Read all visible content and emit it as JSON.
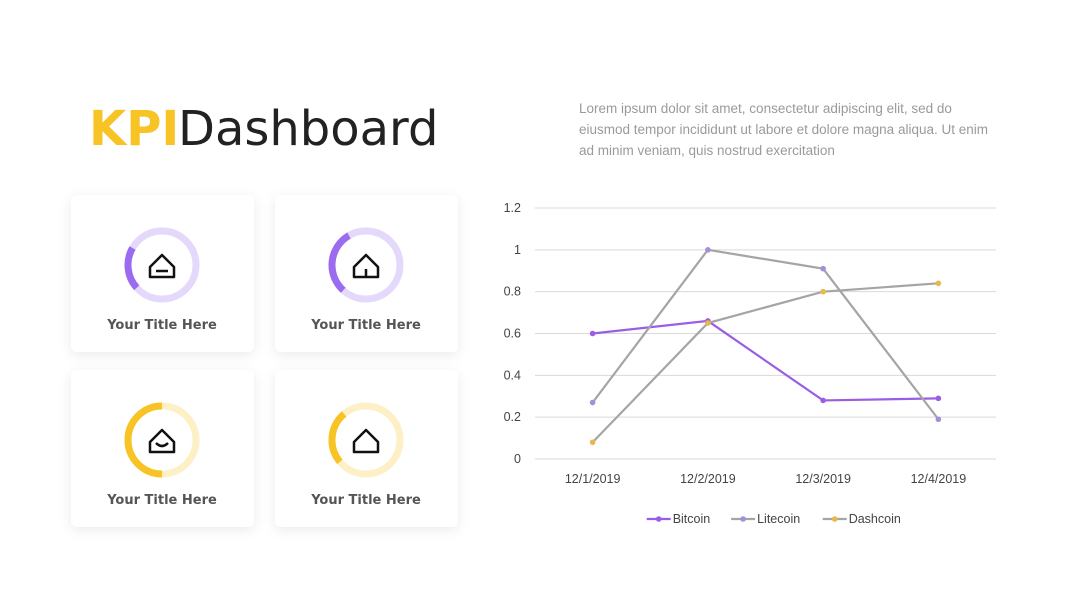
{
  "header": {
    "title_accent": "KPI",
    "title": "Dashboard",
    "description": "Lorem ipsum dolor sit amet, consectetur adipiscing elit, sed do eiusmod tempor incididunt ut labore et dolore magna aliqua. Ut enim ad minim veniam, quis nostrud exercitation"
  },
  "cards": [
    {
      "label": "Your Title Here",
      "progress": 20,
      "color": "#9b6cf0",
      "track": "#e4d8fb"
    },
    {
      "label": "Your Title Here",
      "progress": 30,
      "color": "#9b6cf0",
      "track": "#e4d8fb"
    },
    {
      "label": "Your Title Here",
      "progress": 50,
      "color": "#f7c325",
      "track": "#fdf0c6"
    },
    {
      "label": "Your Title Here",
      "progress": 25,
      "color": "#f7c325",
      "track": "#fdf0c6"
    }
  ],
  "chart_data": {
    "type": "line",
    "categories": [
      "12/1/2019",
      "12/2/2019",
      "12/3/2019",
      "12/4/2019"
    ],
    "series": [
      {
        "name": "Bitcoin",
        "color": "#9b5de5",
        "marker_color": "#9b5de5",
        "values": [
          0.6,
          0.66,
          0.28,
          0.29
        ]
      },
      {
        "name": "Litecoin",
        "color": "#a5a5a5",
        "marker_color": "#a58fd8",
        "values": [
          0.27,
          1.0,
          0.91,
          0.19
        ]
      },
      {
        "name": "Dashcoin",
        "color": "#a5a5a5",
        "marker_color": "#e8b84a",
        "values": [
          0.08,
          0.65,
          0.8,
          0.84
        ]
      }
    ],
    "ylim": [
      0,
      1.2
    ],
    "yticks": [
      0,
      0.2,
      0.4,
      0.6,
      0.8,
      1,
      1.2
    ],
    "grid": true,
    "legend": "bottom"
  }
}
